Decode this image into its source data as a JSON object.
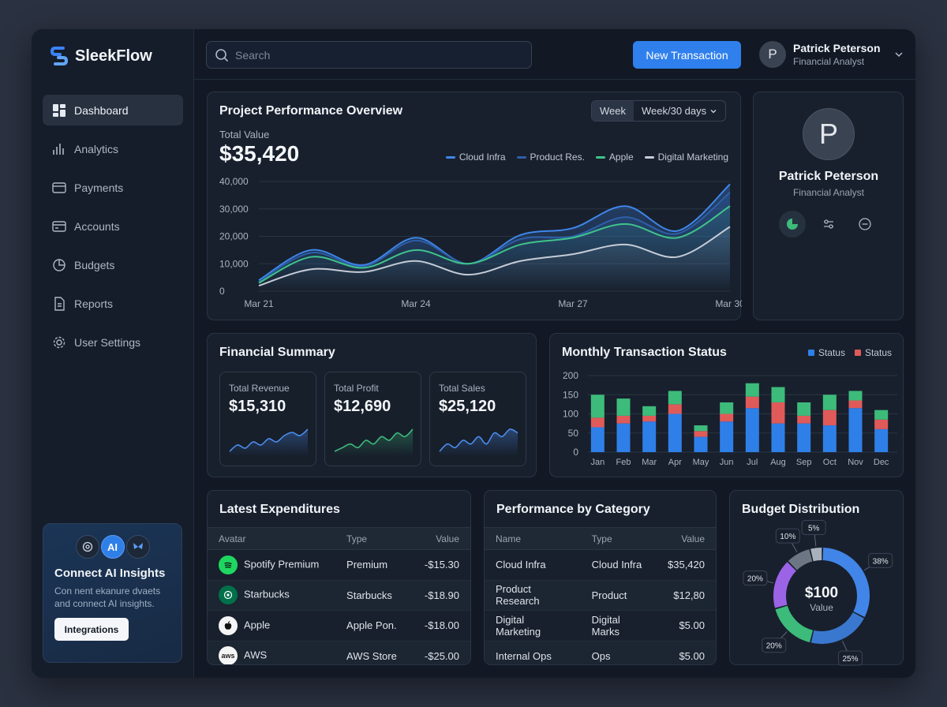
{
  "app": {
    "name": "SleekFlow"
  },
  "sidebar": {
    "items": [
      {
        "label": "Dashboard",
        "icon": "dashboard-icon",
        "active": true
      },
      {
        "label": "Analytics",
        "icon": "analytics-icon"
      },
      {
        "label": "Payments",
        "icon": "payments-icon"
      },
      {
        "label": "Accounts",
        "icon": "accounts-icon"
      },
      {
        "label": "Budgets",
        "icon": "budgets-icon"
      },
      {
        "label": "Reports",
        "icon": "reports-icon"
      },
      {
        "label": "User Settings",
        "icon": "gear-icon"
      }
    ],
    "ai_card": {
      "badge": "AI",
      "title": "Connect AI Insights",
      "description": "Con nent ekanure dvaets and connect AI insights.",
      "button": "Integrations"
    }
  },
  "topbar": {
    "search_placeholder": "Search",
    "new_button": "New Transaction",
    "user": {
      "initial": "P",
      "name": "Patrick Peterson",
      "role": "Financial Analyst"
    }
  },
  "overview": {
    "title": "Project Performance Overview",
    "toggle": [
      "Week",
      "Week/30 days"
    ],
    "total_label": "Total Value",
    "total_value": "$35,420"
  },
  "profile": {
    "initial": "P",
    "name": "Patrick Peterson",
    "role": "Financial Analyst"
  },
  "financial_summary": {
    "title": "Financial Summary",
    "cards": [
      {
        "label": "Total Revenue",
        "value": "$15,310",
        "color": "#4c8df0"
      },
      {
        "label": "Total Profit",
        "value": "$12,690",
        "color": "#3dbb7a"
      },
      {
        "label": "Total Sales",
        "value": "$25,120",
        "color": "#4c8df0"
      }
    ]
  },
  "monthly": {
    "title": "Monthly Transaction Status"
  },
  "expenditures": {
    "title": "Latest Expenditures",
    "columns": [
      "Avatar",
      "Type",
      "Value"
    ],
    "rows": [
      {
        "name": "Spotify Premium",
        "type": "Premium",
        "value": "-$15.30",
        "icon": "spotify-icon"
      },
      {
        "name": "Starbucks",
        "type": "Starbucks",
        "value": "-$18.90",
        "icon": "starbucks-icon"
      },
      {
        "name": "Apple",
        "type": "Apple Pon.",
        "value": "-$18.00",
        "icon": "apple-icon"
      },
      {
        "name": "AWS",
        "type": "AWS Store",
        "value": "-$25.00",
        "icon": "aws-icon",
        "badge": "aws"
      }
    ]
  },
  "category": {
    "title": "Performance by Category",
    "columns": [
      "Name",
      "Type",
      "Value"
    ],
    "rows": [
      {
        "name": "Cloud Infra",
        "type": "Cloud Infra",
        "value": "$35,420"
      },
      {
        "name": "Product Research",
        "type": "Product",
        "value": "$12,80"
      },
      {
        "name": "Digital Marketing",
        "type": "Digital Marks",
        "value": "$5.00"
      },
      {
        "name": "Internal Ops",
        "type": "Ops",
        "value": "$5.00"
      }
    ]
  },
  "budget": {
    "title": "Budget Distribution"
  },
  "chart_data": [
    {
      "type": "area",
      "x": [
        "Mar 21",
        "Mar 22",
        "Mar 23",
        "Mar 24",
        "Mar 25",
        "Mar 26",
        "Mar 27",
        "Mar 28",
        "Mar 29",
        "Mar 30"
      ],
      "x_tick_labels": [
        "Mar 21",
        "Mar 24",
        "Mar 27",
        "Mar 30"
      ],
      "ylim": [
        0,
        40000
      ],
      "y_ticks": [
        "0",
        "10,000",
        "20,000",
        "30,000",
        "40,000"
      ],
      "grid": true,
      "legend_position": "top-right",
      "series": [
        {
          "name": "Cloud Infra",
          "color": "#3f86ea",
          "values": [
            4000,
            15000,
            9500,
            19500,
            10000,
            20500,
            23000,
            31000,
            22000,
            39000
          ]
        },
        {
          "name": "Product Res.",
          "color": "#2d5fa8",
          "values": [
            3500,
            14000,
            9000,
            18500,
            10000,
            19000,
            20000,
            27000,
            21000,
            36000
          ]
        },
        {
          "name": "Apple",
          "color": "#3fc38a",
          "values": [
            3000,
            12500,
            8500,
            15000,
            10000,
            17000,
            19500,
            24500,
            19500,
            31000
          ]
        },
        {
          "name": "Digital Marketing",
          "color": "#c6ccd6",
          "values": [
            2000,
            8000,
            7000,
            11000,
            6000,
            11000,
            13500,
            17000,
            12500,
            23500
          ]
        }
      ]
    },
    {
      "type": "line",
      "title": "Total Revenue",
      "values": [
        2,
        4,
        3,
        5,
        4,
        6,
        5,
        7,
        8,
        7,
        9
      ],
      "color": "#4c8df0"
    },
    {
      "type": "line",
      "title": "Total Profit",
      "values": [
        2,
        3,
        4,
        3,
        5,
        4,
        6,
        5,
        7,
        6,
        8
      ],
      "color": "#3dbb7a"
    },
    {
      "type": "line",
      "title": "Total Sales",
      "values": [
        2,
        4,
        3,
        5,
        4,
        6,
        4,
        7,
        6,
        8,
        7
      ],
      "color": "#4c8df0"
    },
    {
      "type": "bar",
      "stacked": true,
      "categories": [
        "Jan",
        "Feb",
        "Mar",
        "Apr",
        "May",
        "Jun",
        "Jul",
        "Aug",
        "Sep",
        "Oct",
        "Nov",
        "Dec"
      ],
      "ylim": [
        0,
        200
      ],
      "y_ticks": [
        "0",
        "50",
        "100",
        "150",
        "200"
      ],
      "legend_position": "top-right",
      "series": [
        {
          "name": "Status",
          "color": "#2f7fe8",
          "values": [
            65,
            75,
            80,
            100,
            40,
            80,
            115,
            75,
            75,
            70,
            115,
            60
          ]
        },
        {
          "name": "Status",
          "color": "#e05a5a",
          "values": [
            25,
            20,
            15,
            25,
            15,
            20,
            30,
            55,
            20,
            40,
            20,
            25
          ]
        },
        {
          "name": "",
          "color": "#3dbb7a",
          "values": [
            60,
            45,
            25,
            35,
            15,
            30,
            35,
            40,
            35,
            40,
            25,
            25
          ]
        }
      ]
    },
    {
      "type": "pie",
      "donut": true,
      "center_value": "$100",
      "center_label": "Value",
      "slices": [
        {
          "label": "38%",
          "value": 38,
          "color": "#4285e8"
        },
        {
          "label": "25%",
          "value": 25,
          "color": "#3a78cf"
        },
        {
          "label": "20%",
          "value": 20,
          "color": "#3dbb7a"
        },
        {
          "label": "20%",
          "value": 20,
          "color": "#9b63e6"
        },
        {
          "label": "10%",
          "value": 10,
          "color": "#6c7685"
        },
        {
          "label": "5%",
          "value": 5,
          "color": "#a9b1bd"
        }
      ]
    }
  ]
}
